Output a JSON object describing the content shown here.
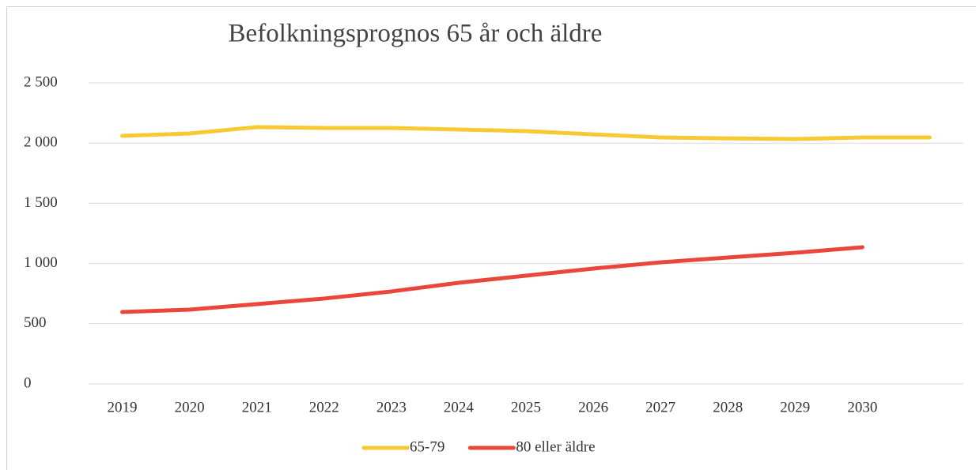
{
  "chart_data": {
    "type": "line",
    "title": "Befolkningsprognos 65 år och äldre",
    "categories": [
      "2019",
      "2020",
      "2021",
      "2022",
      "2023",
      "2024",
      "2025",
      "2026",
      "2027",
      "2028",
      "2029",
      "2030",
      null
    ],
    "series": [
      {
        "name": "65-79",
        "color": "#f7c933",
        "values": [
          2060,
          2080,
          2133,
          2126,
          2126,
          2113,
          2100,
          2073,
          2047,
          2040,
          2034,
          2047,
          2047
        ]
      },
      {
        "name": "80 eller äldre",
        "color": "#e9473b",
        "values": [
          597,
          617,
          663,
          709,
          768,
          840,
          899,
          958,
          1010,
          1050,
          1089,
          1135,
          null
        ]
      }
    ],
    "ylim": [
      0,
      2500
    ],
    "yticks": [
      0,
      500,
      {
        "value": 1000,
        "label": "1 000"
      },
      {
        "value": 1500,
        "label": "1 500"
      },
      {
        "value": 2000,
        "label": "2 000"
      },
      {
        "value": 2500,
        "label": "2 500"
      }
    ],
    "grid": true,
    "legend": "bottom"
  }
}
